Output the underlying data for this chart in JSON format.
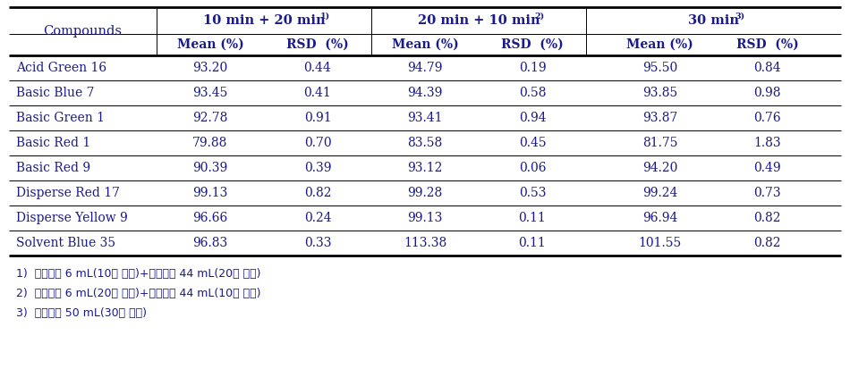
{
  "compounds": [
    "Acid Green 16",
    "Basic Blue 7",
    "Basic Green 1",
    "Basic Red 1",
    "Basic Red 9",
    "Disperse Red 17",
    "Disperse Yellow 9",
    "Solvent Blue 35"
  ],
  "col1_mean": [
    "93.20",
    "93.45",
    "92.78",
    "79.88",
    "90.39",
    "99.13",
    "96.66",
    "96.83"
  ],
  "col1_rsd": [
    "0.44",
    "0.41",
    "0.91",
    "0.70",
    "0.39",
    "0.82",
    "0.24",
    "0.33"
  ],
  "col2_mean": [
    "94.79",
    "94.39",
    "93.41",
    "83.58",
    "93.12",
    "99.28",
    "99.13",
    "113.38"
  ],
  "col2_rsd": [
    "0.19",
    "0.58",
    "0.94",
    "0.45",
    "0.06",
    "0.53",
    "0.11",
    "0.11"
  ],
  "col3_mean": [
    "95.50",
    "93.85",
    "93.87",
    "81.75",
    "94.20",
    "99.24",
    "96.94",
    "101.55"
  ],
  "col3_rsd": [
    "0.84",
    "0.98",
    "0.76",
    "1.83",
    "0.49",
    "0.73",
    "0.82",
    "0.82"
  ],
  "header_group1": "10 min + 20 min",
  "header_group1_sup": "1)",
  "header_group2": "20 min + 10 min",
  "header_group2_sup": "2)",
  "header_group3": "30 min",
  "header_group3_sup": "3)",
  "subheader_mean": "Mean (%)",
  "subheader_rsd": "RSD  (%)",
  "col_compounds": "Compounds",
  "footnote1": "1)  추출용매 6 mL(10분 추출)+추출용매 44 mL(20분 추출)",
  "footnote2": "2)  추출용매 6 mL(20분 추출)+추출용매 44 mL(10분 추출)",
  "footnote3": "3)  추출용매 50 mL(30분 추출)",
  "text_color": "#1a1a8c",
  "line_color": "#000000",
  "bg_color": "#ffffff",
  "fig_width": 9.5,
  "fig_height": 4.13,
  "dpi": 100
}
